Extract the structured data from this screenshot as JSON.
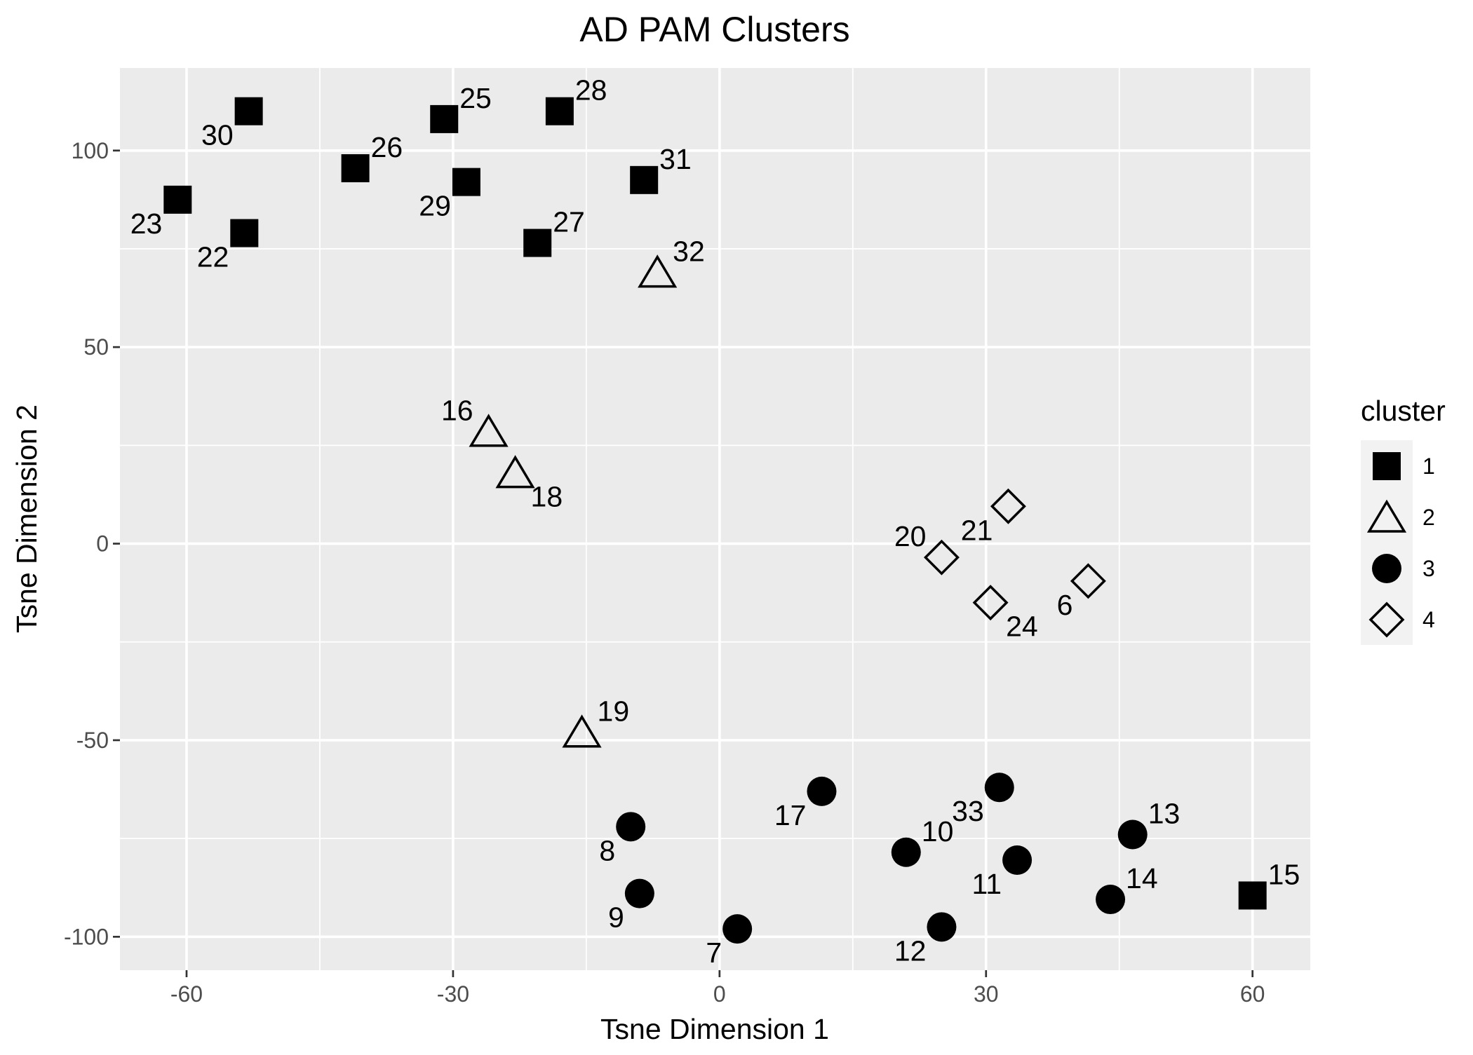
{
  "chart_data": {
    "type": "scatter",
    "title": "AD PAM Clusters",
    "xlabel": "Tsne Dimension 1",
    "ylabel": "Tsne Dimension 2",
    "xlim": [
      -67.5,
      66.5
    ],
    "ylim": [
      -108.5,
      121
    ],
    "xticks": [
      -60,
      -30,
      0,
      30,
      60
    ],
    "yticks": [
      -100,
      -50,
      0,
      50,
      100
    ],
    "xtick_labels": [
      "-60",
      "-30",
      "0",
      "30",
      "60"
    ],
    "ytick_labels": [
      "-100",
      "-50",
      "0",
      "50",
      "100"
    ],
    "grid": true,
    "panel_background": "#ebebeb",
    "legend": {
      "title": "cluster",
      "position": "right",
      "entries": [
        {
          "label": "1",
          "shape": "square-filled"
        },
        {
          "label": "2",
          "shape": "triangle-open"
        },
        {
          "label": "3",
          "shape": "circle-filled"
        },
        {
          "label": "4",
          "shape": "diamond-open"
        }
      ]
    },
    "points": [
      {
        "label": "23",
        "x": -61,
        "y": 87.5,
        "cluster": "1",
        "label_pos": "bottom-left"
      },
      {
        "label": "30",
        "x": -53,
        "y": 110,
        "cluster": "1",
        "label_pos": "bottom-left"
      },
      {
        "label": "22",
        "x": -53.5,
        "y": 79,
        "cluster": "1",
        "label_pos": "bottom-left"
      },
      {
        "label": "26",
        "x": -41,
        "y": 95.5,
        "cluster": "1",
        "label_pos": "top-right"
      },
      {
        "label": "25",
        "x": -31,
        "y": 108,
        "cluster": "1",
        "label_pos": "top-right"
      },
      {
        "label": "29",
        "x": -28.5,
        "y": 92,
        "cluster": "1",
        "label_pos": "bottom-left"
      },
      {
        "label": "28",
        "x": -18,
        "y": 110,
        "cluster": "1",
        "label_pos": "top-right"
      },
      {
        "label": "27",
        "x": -20.5,
        "y": 76.5,
        "cluster": "1",
        "label_pos": "top-right"
      },
      {
        "label": "31",
        "x": -8.5,
        "y": 92.5,
        "cluster": "1",
        "label_pos": "top-right"
      },
      {
        "label": "15",
        "x": 60,
        "y": -89.5,
        "cluster": "1",
        "label_pos": "top-right"
      },
      {
        "label": "32",
        "x": -7,
        "y": 69,
        "cluster": "2",
        "label_pos": "top-right"
      },
      {
        "label": "16",
        "x": -26,
        "y": 28.5,
        "cluster": "2",
        "label_pos": "top-left"
      },
      {
        "label": "18",
        "x": -23,
        "y": 18,
        "cluster": "2",
        "label_pos": "bottom-right"
      },
      {
        "label": "19",
        "x": -15.5,
        "y": -48,
        "cluster": "2",
        "label_pos": "top-right"
      },
      {
        "label": "17",
        "x": 11.5,
        "y": -63,
        "cluster": "3",
        "label_pos": "bottom-left"
      },
      {
        "label": "8",
        "x": -10,
        "y": -72,
        "cluster": "3",
        "label_pos": "bottom-left"
      },
      {
        "label": "9",
        "x": -9,
        "y": -89,
        "cluster": "3",
        "label_pos": "bottom-left"
      },
      {
        "label": "7",
        "x": 2,
        "y": -98,
        "cluster": "3",
        "label_pos": "bottom-left"
      },
      {
        "label": "10",
        "x": 21,
        "y": -78.5,
        "cluster": "3",
        "label_pos": "top-right"
      },
      {
        "label": "12",
        "x": 25,
        "y": -97.5,
        "cluster": "3",
        "label_pos": "bottom-left"
      },
      {
        "label": "33",
        "x": 31.5,
        "y": -62,
        "cluster": "3",
        "label_pos": "bottom-left"
      },
      {
        "label": "11",
        "x": 33.5,
        "y": -80.5,
        "cluster": "3",
        "label_pos": "bottom-left"
      },
      {
        "label": "13",
        "x": 46.5,
        "y": -74,
        "cluster": "3",
        "label_pos": "top-right"
      },
      {
        "label": "14",
        "x": 44,
        "y": -90.5,
        "cluster": "3",
        "label_pos": "top-right"
      },
      {
        "label": "20",
        "x": 25,
        "y": -3.5,
        "cluster": "4",
        "label_pos": "top-left"
      },
      {
        "label": "21",
        "x": 32.5,
        "y": 9.5,
        "cluster": "4",
        "label_pos": "bottom-left"
      },
      {
        "label": "24",
        "x": 30.5,
        "y": -15,
        "cluster": "4",
        "label_pos": "bottom-right"
      },
      {
        "label": "6",
        "x": 41.5,
        "y": -9.5,
        "cluster": "4",
        "label_pos": "bottom-left"
      }
    ]
  }
}
